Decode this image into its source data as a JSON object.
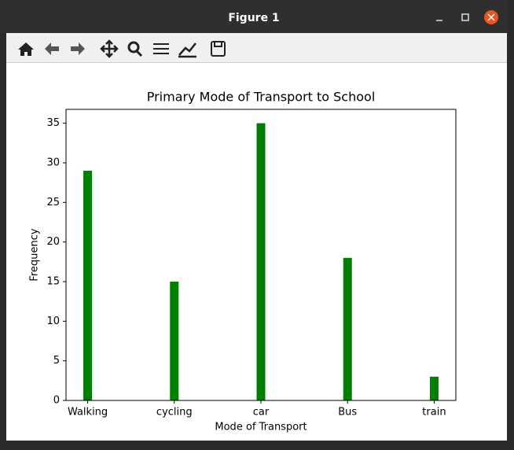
{
  "window": {
    "title": "Figure 1"
  },
  "chart_data": {
    "type": "bar",
    "title": "Primary Mode of Transport to School",
    "x_label": "Mode of Transport",
    "y_label": "Frequency",
    "categories": [
      "Walking",
      "cycling",
      "car",
      "Bus",
      "train"
    ],
    "values": [
      29,
      15,
      35,
      18,
      3
    ],
    "color": "#008000",
    "ylim": [
      0,
      36.75
    ],
    "yticks": [
      0,
      5,
      10,
      15,
      20,
      25,
      30,
      35
    ]
  }
}
